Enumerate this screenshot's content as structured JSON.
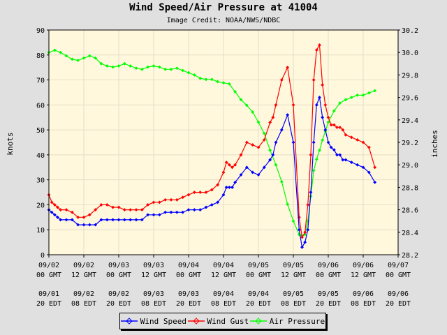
{
  "chart_data": {
    "type": "line",
    "title": "Wind Speed/Air Pressure at 41004",
    "subtitle": "Image Credit: NOAA/NWS/NDBC",
    "ylabel_left": "knots",
    "ylabel_right": "inches",
    "ylim_left": [
      0,
      90
    ],
    "ylim_right": [
      28.2,
      30.2
    ],
    "yticks_left": [
      "0",
      "10",
      "20",
      "30",
      "40",
      "50",
      "60",
      "70",
      "80",
      "90"
    ],
    "yticks_right": [
      "28.2",
      "28.4",
      "28.6",
      "28.8",
      "29.0",
      "29.2",
      "29.4",
      "29.6",
      "29.8",
      "30.0",
      "30.2"
    ],
    "x_range_hours": [
      0,
      120
    ],
    "x_gmt_labels": [
      [
        "09/02",
        "00 GMT"
      ],
      [
        "09/02",
        "12 GMT"
      ],
      [
        "09/03",
        "00 GMT"
      ],
      [
        "09/03",
        "12 GMT"
      ],
      [
        "09/04",
        "00 GMT"
      ],
      [
        "09/04",
        "12 GMT"
      ],
      [
        "09/05",
        "00 GMT"
      ],
      [
        "09/05",
        "12 GMT"
      ],
      [
        "09/06",
        "00 GMT"
      ],
      [
        "09/06",
        "12 GMT"
      ],
      [
        "09/07",
        "00 GMT"
      ]
    ],
    "x_edt_labels": [
      [
        "09/01",
        "20 EDT"
      ],
      [
        "09/02",
        "08 EDT"
      ],
      [
        "09/02",
        "20 EDT"
      ],
      [
        "09/03",
        "08 EDT"
      ],
      [
        "09/03",
        "20 EDT"
      ],
      [
        "09/04",
        "08 EDT"
      ],
      [
        "09/04",
        "20 EDT"
      ],
      [
        "09/05",
        "08 EDT"
      ],
      [
        "09/05",
        "20 EDT"
      ],
      [
        "09/06",
        "08 EDT"
      ],
      [
        "09/06",
        "20 EDT"
      ]
    ],
    "grid": true,
    "legend_position": "bottom-center",
    "series": [
      {
        "name": "Wind Speed",
        "color": "#0000ff",
        "axis": "left",
        "x": [
          0,
          1,
          2,
          3,
          4,
          6,
          8,
          10,
          12,
          14,
          16,
          18,
          20,
          22,
          24,
          26,
          28,
          30,
          32,
          34,
          36,
          38,
          40,
          42,
          44,
          46,
          48,
          50,
          52,
          54,
          56,
          58,
          60,
          61,
          62,
          63,
          64,
          66,
          68,
          70,
          72,
          74,
          76,
          77,
          78,
          80,
          82,
          84,
          86,
          87,
          88,
          89,
          90,
          91,
          92,
          93,
          94,
          95,
          96,
          97,
          98,
          99,
          100,
          101,
          102,
          104,
          106,
          108,
          110,
          112
        ],
        "y": [
          18,
          17,
          16,
          15,
          14,
          14,
          14,
          12,
          12,
          12,
          12,
          14,
          14,
          14,
          14,
          14,
          14,
          14,
          14,
          16,
          16,
          16,
          17,
          17,
          17,
          17,
          18,
          18,
          18,
          19,
          20,
          21,
          24,
          27,
          27,
          27,
          29,
          32,
          35,
          33,
          32,
          35,
          38,
          40,
          45,
          50,
          56,
          45,
          10,
          3,
          5,
          10,
          25,
          45,
          60,
          63,
          55,
          50,
          45,
          43,
          42,
          40,
          40,
          38,
          38,
          37,
          36,
          35,
          33,
          29
        ]
      },
      {
        "name": "Wind Gust",
        "color": "#ff0000",
        "axis": "left",
        "x": [
          0,
          1,
          2,
          3,
          4,
          6,
          8,
          10,
          12,
          14,
          16,
          18,
          20,
          22,
          24,
          26,
          28,
          30,
          32,
          34,
          36,
          38,
          40,
          42,
          44,
          46,
          48,
          50,
          52,
          54,
          56,
          58,
          60,
          61,
          62,
          63,
          64,
          66,
          68,
          70,
          72,
          74,
          76,
          77,
          78,
          80,
          82,
          84,
          86,
          87,
          88,
          89,
          90,
          91,
          92,
          93,
          94,
          95,
          96,
          97,
          98,
          99,
          100,
          101,
          102,
          104,
          106,
          108,
          110,
          112
        ],
        "y": [
          24,
          21,
          20,
          19,
          18,
          18,
          17,
          15,
          15,
          16,
          18,
          20,
          20,
          19,
          19,
          18,
          18,
          18,
          18,
          20,
          21,
          21,
          22,
          22,
          22,
          23,
          24,
          25,
          25,
          25,
          26,
          28,
          33,
          37,
          36,
          35,
          36,
          40,
          45,
          44,
          43,
          46,
          53,
          55,
          60,
          70,
          75,
          60,
          15,
          7,
          9,
          20,
          40,
          70,
          82,
          84,
          68,
          60,
          55,
          52,
          52,
          51,
          51,
          50,
          48,
          47,
          46,
          45,
          43,
          35
        ]
      },
      {
        "name": "Air Pressure",
        "color": "#00ff00",
        "axis": "right",
        "x": [
          0,
          2,
          4,
          6,
          8,
          10,
          12,
          14,
          16,
          18,
          20,
          22,
          24,
          26,
          28,
          30,
          32,
          34,
          36,
          38,
          40,
          42,
          44,
          46,
          48,
          50,
          52,
          54,
          56,
          58,
          60,
          62,
          64,
          66,
          68,
          70,
          72,
          74,
          76,
          78,
          80,
          82,
          84,
          86,
          87,
          88,
          89,
          90,
          91,
          92,
          93,
          94,
          95,
          96,
          98,
          100,
          102,
          104,
          106,
          108,
          110,
          112
        ],
        "y": [
          30.0,
          30.02,
          30.0,
          29.97,
          29.94,
          29.93,
          29.95,
          29.97,
          29.95,
          29.9,
          29.88,
          29.87,
          29.88,
          29.9,
          29.88,
          29.86,
          29.85,
          29.87,
          29.88,
          29.87,
          29.85,
          29.85,
          29.86,
          29.84,
          29.82,
          29.8,
          29.77,
          29.76,
          29.76,
          29.74,
          29.73,
          29.72,
          29.65,
          29.58,
          29.53,
          29.47,
          29.38,
          29.28,
          29.13,
          29.0,
          28.85,
          28.65,
          28.5,
          28.38,
          28.37,
          28.38,
          28.5,
          28.72,
          28.95,
          29.05,
          29.13,
          29.22,
          29.3,
          29.38,
          29.48,
          29.55,
          29.58,
          29.6,
          29.62,
          29.62,
          29.64,
          29.66
        ]
      }
    ]
  }
}
